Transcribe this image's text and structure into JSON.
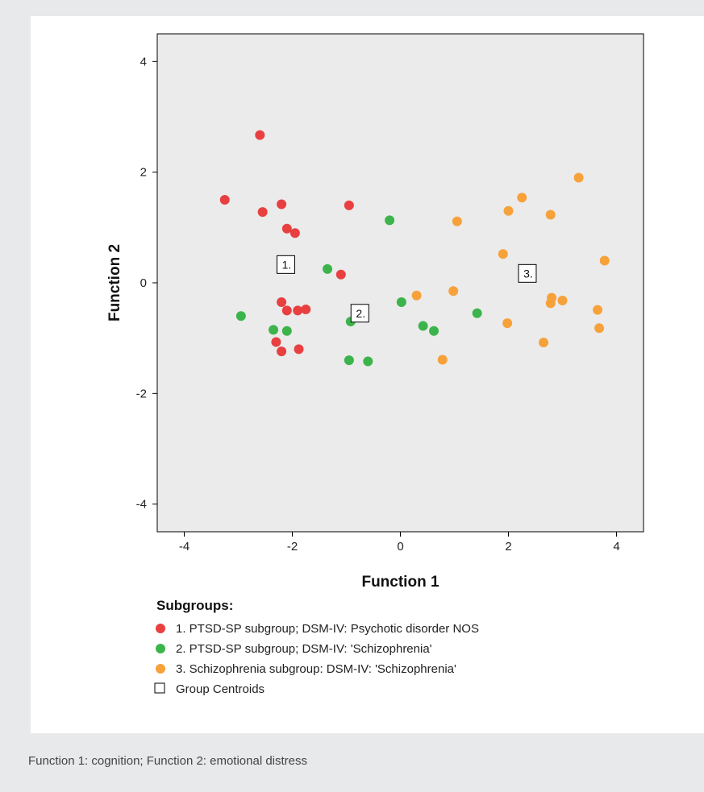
{
  "chart_data": {
    "type": "scatter",
    "xlabel": "Function 1",
    "ylabel": "Function 2",
    "xlim": [
      -4.5,
      4.5
    ],
    "ylim": [
      -4.5,
      4.5
    ],
    "xticks": [
      -4,
      -2,
      0,
      2,
      4
    ],
    "yticks": [
      -4,
      -2,
      0,
      2,
      4
    ],
    "grid": false,
    "legend_title": "Subgroups:",
    "legend_position": "bottom",
    "series": [
      {
        "name": "1. PTSD-SP subgroup; DSM-IV: Psychotic disorder NOS",
        "color": "#e84040",
        "points": [
          [
            -2.6,
            2.67
          ],
          [
            -3.25,
            1.5
          ],
          [
            -2.55,
            1.28
          ],
          [
            -2.2,
            1.42
          ],
          [
            -2.1,
            0.98
          ],
          [
            -1.95,
            0.9
          ],
          [
            -0.95,
            1.4
          ],
          [
            -1.1,
            0.15
          ],
          [
            -2.2,
            -0.35
          ],
          [
            -2.1,
            -0.5
          ],
          [
            -1.9,
            -0.5
          ],
          [
            -1.75,
            -0.48
          ],
          [
            -2.3,
            -1.07
          ],
          [
            -2.2,
            -1.24
          ],
          [
            -1.88,
            -1.2
          ]
        ]
      },
      {
        "name": "2. PTSD-SP subgroup; DSM-IV: 'Schizophrenia'",
        "color": "#3cb44b",
        "points": [
          [
            -2.95,
            -0.6
          ],
          [
            -2.35,
            -0.85
          ],
          [
            -2.1,
            -0.87
          ],
          [
            -1.35,
            0.25
          ],
          [
            -0.2,
            1.13
          ],
          [
            -0.92,
            -0.7
          ],
          [
            -0.95,
            -1.4
          ],
          [
            -0.6,
            -1.42
          ],
          [
            0.02,
            -0.35
          ],
          [
            0.42,
            -0.78
          ],
          [
            0.62,
            -0.87
          ],
          [
            1.42,
            -0.55
          ]
        ]
      },
      {
        "name": "3. Schizophrenia subgroup: DSM-IV: 'Schizophrenia'",
        "color": "#f7a13a",
        "points": [
          [
            3.3,
            1.9
          ],
          [
            2.25,
            1.54
          ],
          [
            2.0,
            1.3
          ],
          [
            2.78,
            1.23
          ],
          [
            1.05,
            1.11
          ],
          [
            1.9,
            0.52
          ],
          [
            3.78,
            0.4
          ],
          [
            0.3,
            -0.23
          ],
          [
            0.98,
            -0.15
          ],
          [
            2.8,
            -0.27
          ],
          [
            3.0,
            -0.32
          ],
          [
            2.78,
            -0.37
          ],
          [
            3.65,
            -0.49
          ],
          [
            1.98,
            -0.73
          ],
          [
            3.68,
            -0.82
          ],
          [
            2.65,
            -1.08
          ],
          [
            0.78,
            -1.39
          ]
        ]
      }
    ],
    "centroids_label": "Group Centroids",
    "centroids": [
      {
        "label": "1.",
        "x": -2.12,
        "y": 0.33
      },
      {
        "label": "2.",
        "x": -0.75,
        "y": -0.55
      },
      {
        "label": "3.",
        "x": 2.35,
        "y": 0.17
      }
    ]
  },
  "caption": "Function 1: cognition; Function 2: emotional distress"
}
